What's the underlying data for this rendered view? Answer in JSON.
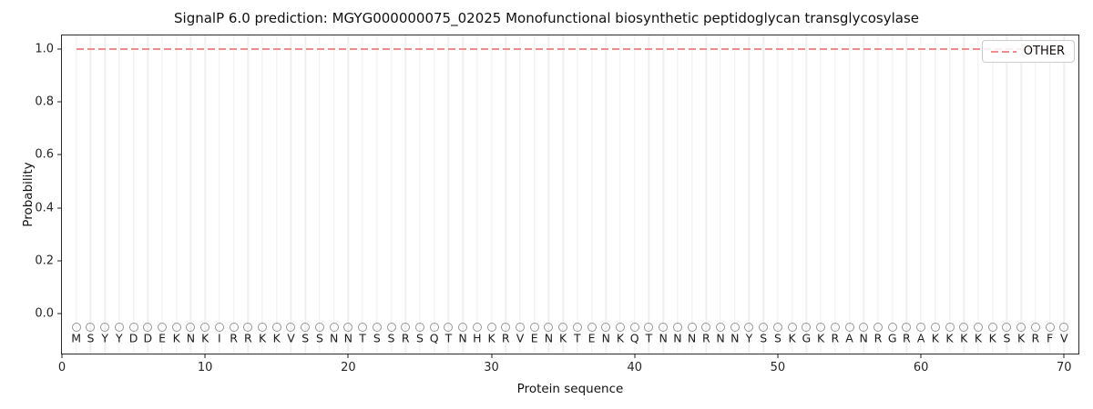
{
  "chart_data": {
    "type": "line",
    "title": "SignalP 6.0 prediction: MGYG000000075_02025 Monofunctional biosynthetic peptidoglycan transglycosylase",
    "xlabel": "Protein sequence",
    "ylabel": "Probability",
    "xlim": [
      0,
      71
    ],
    "ylim": [
      -0.15,
      1.05
    ],
    "x_ticks": [
      0,
      10,
      20,
      30,
      40,
      50,
      60,
      70
    ],
    "y_ticks": [
      0.0,
      0.2,
      0.4,
      0.6,
      0.8,
      1.0
    ],
    "grid": {
      "vertical_per_residue": true,
      "horizontal": false,
      "color": "#efefef"
    },
    "legend": {
      "position": "upper right",
      "entries": [
        {
          "label": "OTHER",
          "color": "#f18c8c",
          "linestyle": "dashed"
        }
      ]
    },
    "sequence": "MSYYDDEKNKIRRKKVSSNNTSSRSQTNHKRVENKTENKQTNNNRNNYSSKGKRANRGRAKKKKKSKRFV",
    "series": [
      {
        "name": "OTHER",
        "color": "#f18c8c",
        "linestyle": "dashed",
        "x": [
          1,
          2,
          3,
          4,
          5,
          6,
          7,
          8,
          9,
          10,
          11,
          12,
          13,
          14,
          15,
          16,
          17,
          18,
          19,
          20,
          21,
          22,
          23,
          24,
          25,
          26,
          27,
          28,
          29,
          30,
          31,
          32,
          33,
          34,
          35,
          36,
          37,
          38,
          39,
          40,
          41,
          42,
          43,
          44,
          45,
          46,
          47,
          48,
          49,
          50,
          51,
          52,
          53,
          54,
          55,
          56,
          57,
          58,
          59,
          60,
          61,
          62,
          63,
          64,
          65,
          66,
          67,
          68,
          69,
          70
        ],
        "values": [
          1.0,
          1.0,
          1.0,
          1.0,
          1.0,
          1.0,
          1.0,
          1.0,
          1.0,
          1.0,
          1.0,
          1.0,
          1.0,
          1.0,
          1.0,
          1.0,
          1.0,
          1.0,
          1.0,
          1.0,
          1.0,
          1.0,
          1.0,
          1.0,
          1.0,
          1.0,
          1.0,
          1.0,
          1.0,
          1.0,
          1.0,
          1.0,
          1.0,
          1.0,
          1.0,
          1.0,
          1.0,
          1.0,
          1.0,
          1.0,
          1.0,
          1.0,
          1.0,
          1.0,
          1.0,
          1.0,
          1.0,
          1.0,
          1.0,
          1.0,
          1.0,
          1.0,
          1.0,
          1.0,
          1.0,
          1.0,
          1.0,
          1.0,
          1.0,
          1.0,
          1.0,
          1.0,
          1.0,
          1.0,
          1.0,
          1.0,
          1.0,
          1.0,
          1.0,
          1.0
        ]
      }
    ],
    "residue_markers": {
      "shape": "circle",
      "color": "#969696",
      "y_value": -0.05
    },
    "sequence_label_y": -0.093
  }
}
